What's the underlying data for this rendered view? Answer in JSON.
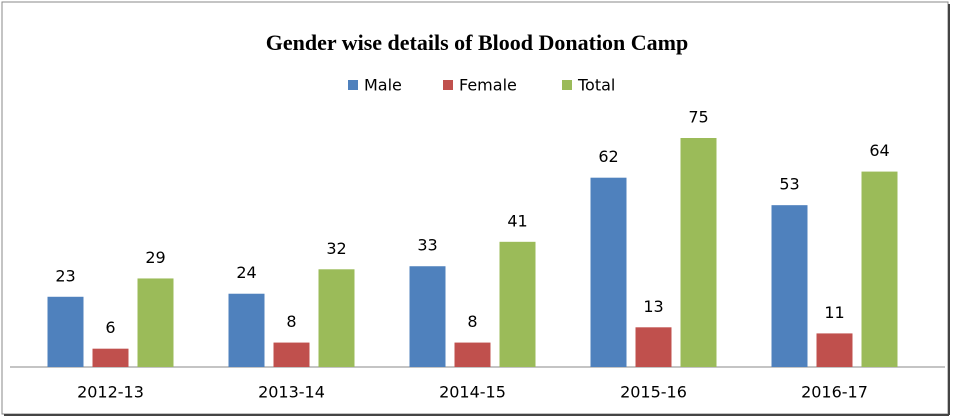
{
  "chart_data": {
    "type": "bar",
    "title": "Gender wise details of Blood Donation Camp",
    "categories": [
      "2012-13",
      "2013-14",
      "2014-15",
      "2015-16",
      "2016-17"
    ],
    "series": [
      {
        "name": "Male",
        "color": "#4f81bd",
        "values": [
          23,
          24,
          33,
          62,
          53
        ]
      },
      {
        "name": "Female",
        "color": "#c0504d",
        "values": [
          6,
          8,
          8,
          13,
          11
        ]
      },
      {
        "name": "Total",
        "color": "#9bbb59",
        "values": [
          29,
          32,
          41,
          75,
          64
        ]
      }
    ],
    "legend": "top"
  }
}
